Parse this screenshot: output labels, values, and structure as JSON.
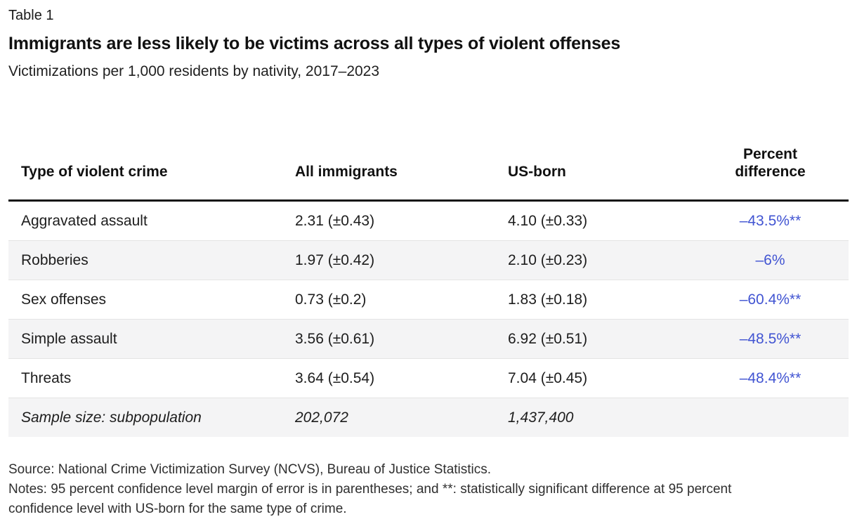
{
  "chart_data": {
    "type": "table",
    "kicker": "Table 1",
    "title": "Immigrants are less likely to be victims across all types of violent offenses",
    "subtitle": "Victimizations per 1,000 residents by nativity, 2017–2023",
    "columns": [
      "Type of violent crime",
      "All immigrants",
      "US-born",
      "Percent difference"
    ],
    "rows": [
      [
        "Aggravated assault",
        "2.31 (±0.43)",
        "4.10 (±0.33)",
        "–43.5%**"
      ],
      [
        "Robberies",
        "1.97 (±0.42)",
        "2.10 (±0.23)",
        "–6%"
      ],
      [
        "Sex offenses",
        "0.73 (±0.2)",
        "1.83 (±0.18)",
        "–60.4%**"
      ],
      [
        "Simple assault",
        "3.56 (±0.61)",
        "6.92 (±0.51)",
        "–48.5%**"
      ],
      [
        "Threats",
        "3.64 (±0.54)",
        "7.04 (±0.45)",
        "–48.4%**"
      ]
    ],
    "sample_size_row": [
      "Sample size: subpopulation",
      "202,072",
      "1,437,400",
      ""
    ],
    "source": "Source: National Crime Victimization Survey (NCVS), Bureau of Justice Statistics.",
    "notes": "Notes: 95 percent confidence level margin of error is in parentheses; and **: statistically significant difference at 95 percent confidence level with US-born for the same type of crime."
  },
  "colors": {
    "accent_blue": "#4154d2",
    "row_alt_background": "#f4f4f5",
    "header_rule": "#121212",
    "row_separator": "#e4e4e4"
  }
}
